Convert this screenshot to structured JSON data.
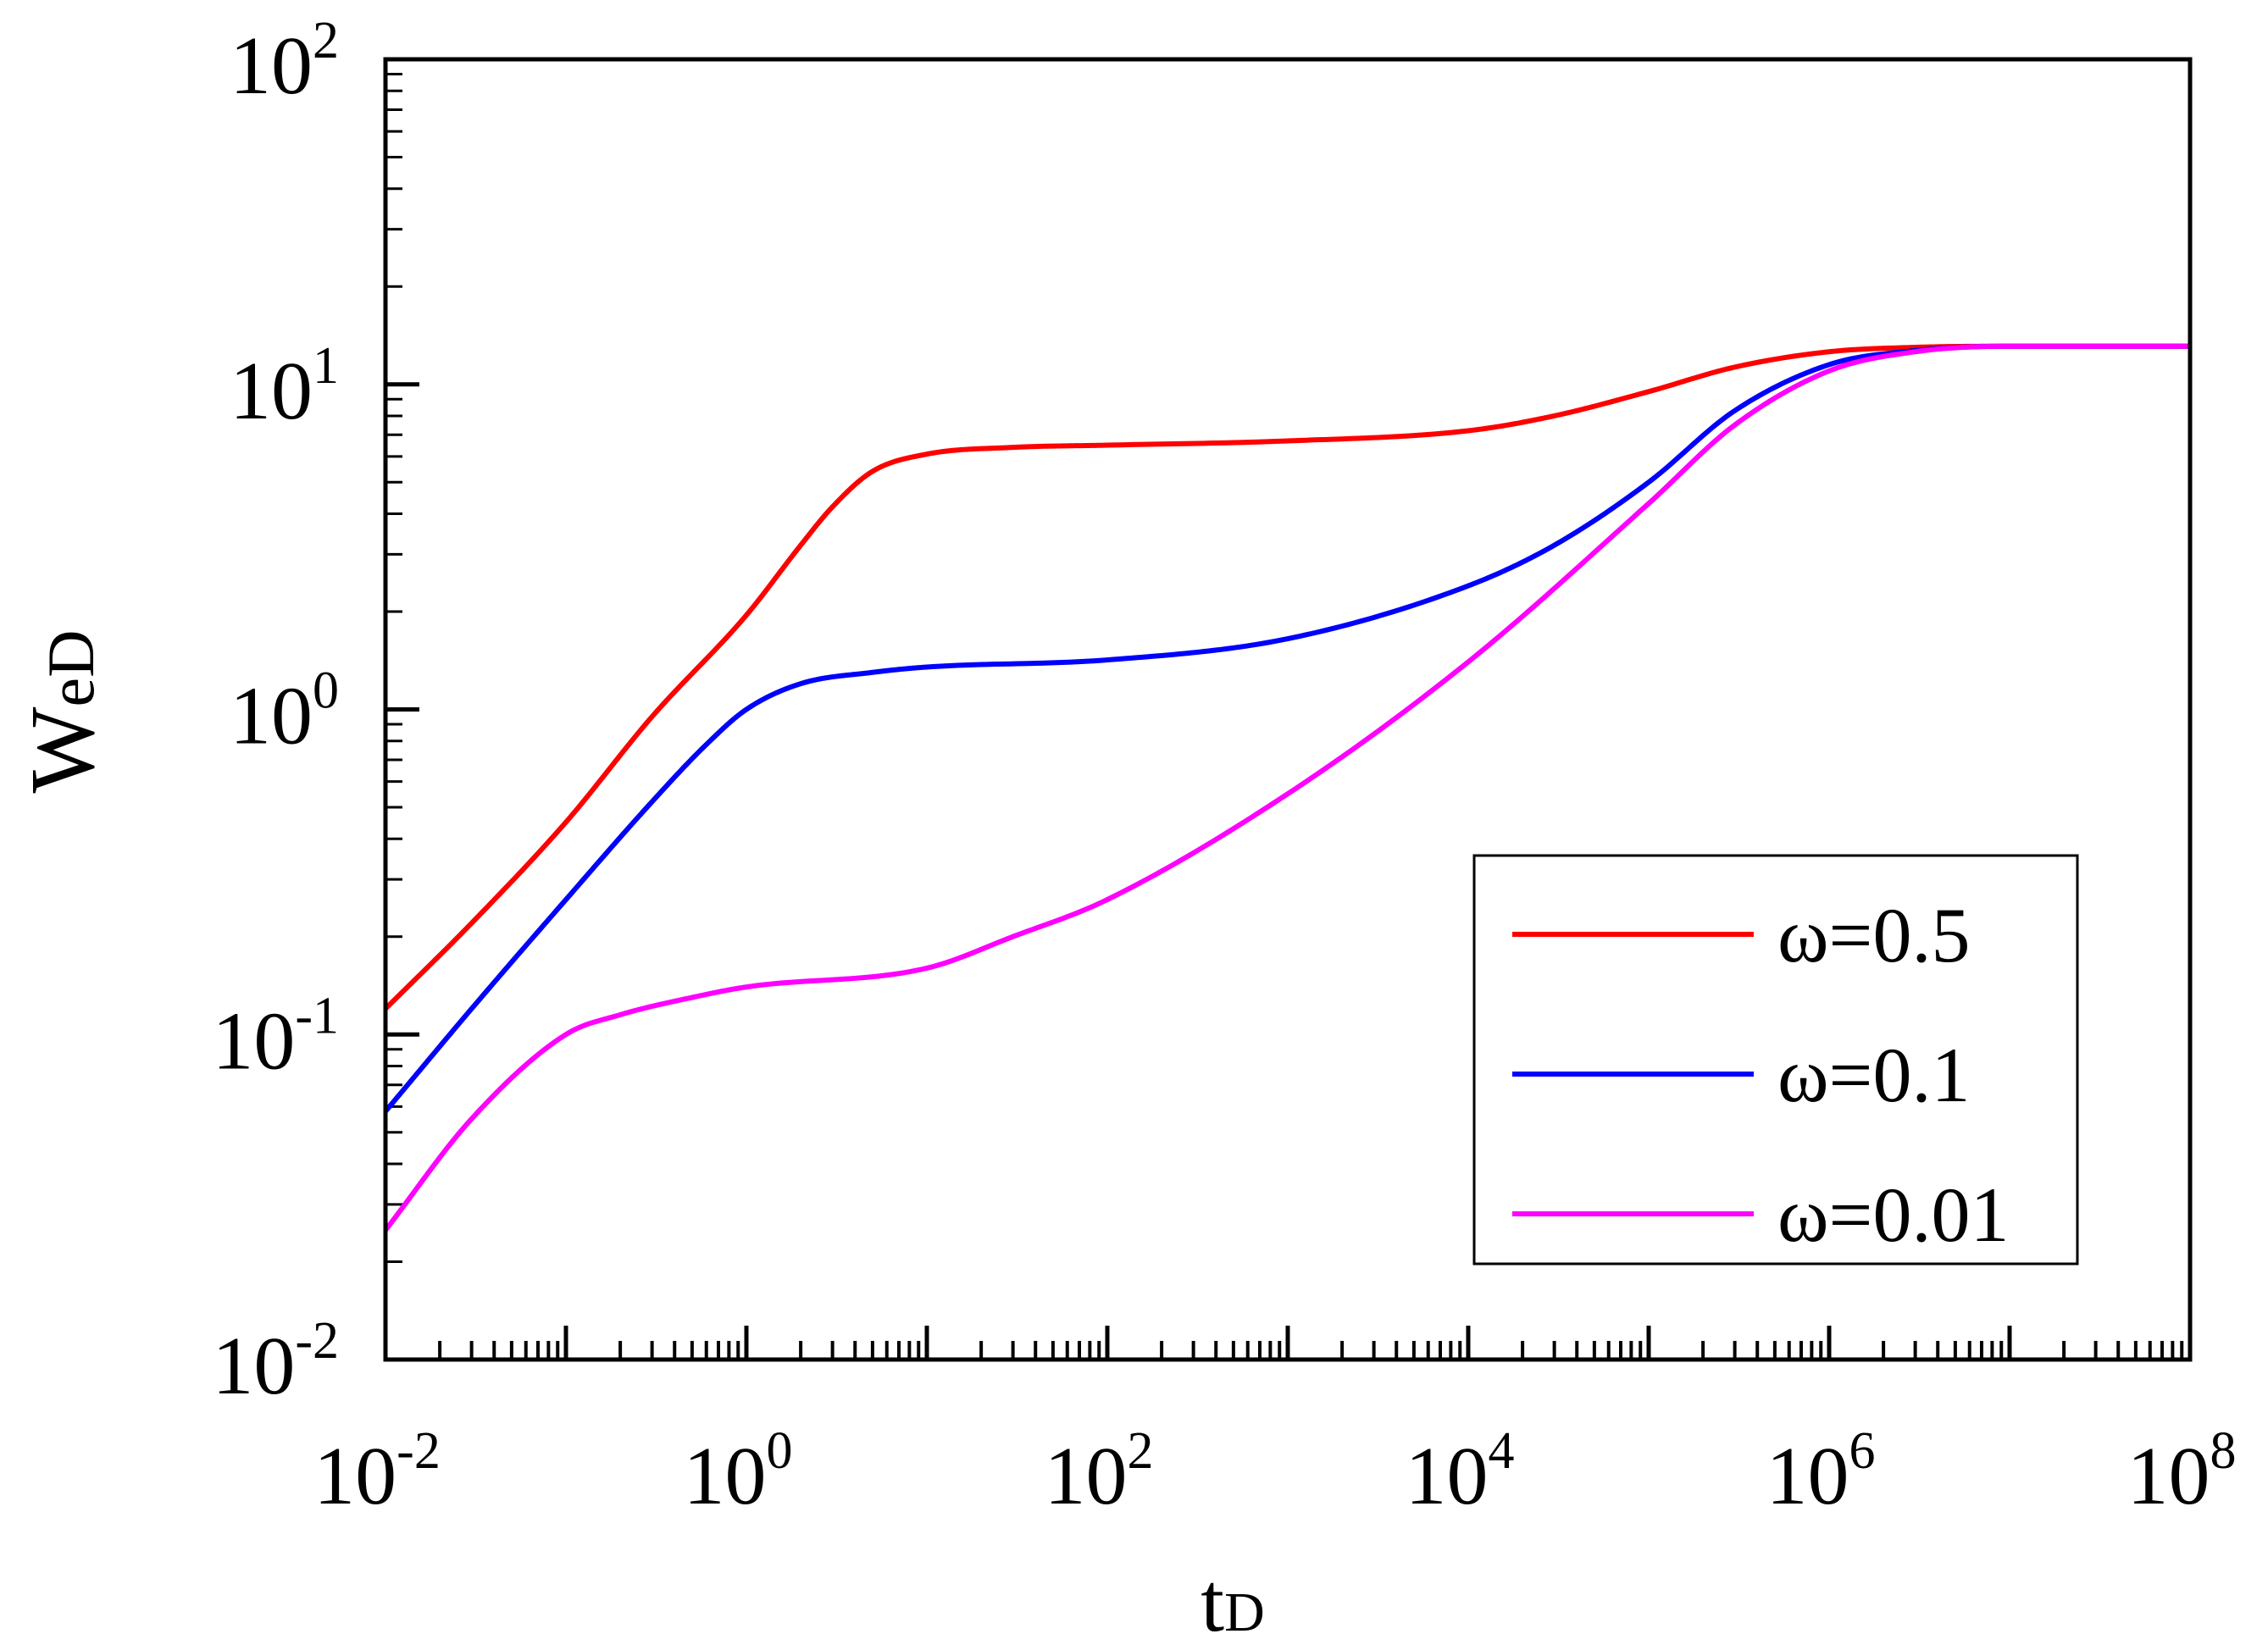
{
  "chart_data": {
    "type": "line",
    "title": "",
    "xscale": "log",
    "yscale": "log",
    "xlim": [
      0.01,
      100000000
    ],
    "ylim": [
      0.01,
      100
    ],
    "xlabel": {
      "main": "t",
      "sub": "D"
    },
    "ylabel": {
      "main": "W",
      "sub": "eD"
    },
    "x_ticks": [
      {
        "base": "10",
        "exp": "-2"
      },
      {
        "base": "10",
        "exp": "0"
      },
      {
        "base": "10",
        "exp": "2"
      },
      {
        "base": "10",
        "exp": "4"
      },
      {
        "base": "10",
        "exp": "6"
      },
      {
        "base": "10",
        "exp": "8"
      }
    ],
    "y_ticks": [
      {
        "base": "10",
        "exp": "-2"
      },
      {
        "base": "10",
        "exp": "-1"
      },
      {
        "base": "10",
        "exp": "0"
      },
      {
        "base": "10",
        "exp": "1"
      },
      {
        "base": "10",
        "exp": "2"
      }
    ],
    "legend_position": "lower-right",
    "series": [
      {
        "name": "ω=0.5",
        "color": "#ff0000",
        "x": [
          0.01,
          0.03,
          0.1,
          0.3,
          1,
          2,
          3,
          5,
          10,
          30,
          100,
          1000,
          10000,
          30000,
          100000,
          300000,
          1000000,
          3000000,
          10000000,
          100000000
        ],
        "y": [
          0.12,
          0.22,
          0.45,
          0.95,
          1.95,
          3.2,
          4.2,
          5.4,
          6.1,
          6.4,
          6.5,
          6.7,
          7.2,
          8.0,
          9.5,
          11.3,
          12.6,
          13.0,
          13.1,
          13.1
        ]
      },
      {
        "name": "ω=0.1",
        "color": "#0000ff",
        "x": [
          0.01,
          0.03,
          0.1,
          0.3,
          0.6,
          1,
          2,
          5,
          10,
          100,
          1000,
          10000,
          30000,
          100000,
          300000,
          1000000,
          3000000,
          10000000,
          100000000
        ],
        "y": [
          0.058,
          0.12,
          0.26,
          0.52,
          0.78,
          1.0,
          1.2,
          1.3,
          1.35,
          1.42,
          1.65,
          2.4,
          3.2,
          5.0,
          8.3,
          11.5,
          12.7,
          13.1,
          13.1
        ]
      },
      {
        "name": "ω=0.01",
        "color": "#ff00ff",
        "x": [
          0.01,
          0.03,
          0.1,
          0.2,
          0.5,
          1,
          10,
          30,
          100,
          1000,
          10000,
          100000,
          300000,
          1000000,
          3000000,
          10000000,
          100000000
        ],
        "y": [
          0.025,
          0.055,
          0.1,
          0.115,
          0.13,
          0.14,
          0.16,
          0.2,
          0.26,
          0.55,
          1.4,
          4.3,
          7.5,
          11.0,
          12.6,
          13.1,
          13.1
        ]
      }
    ]
  }
}
